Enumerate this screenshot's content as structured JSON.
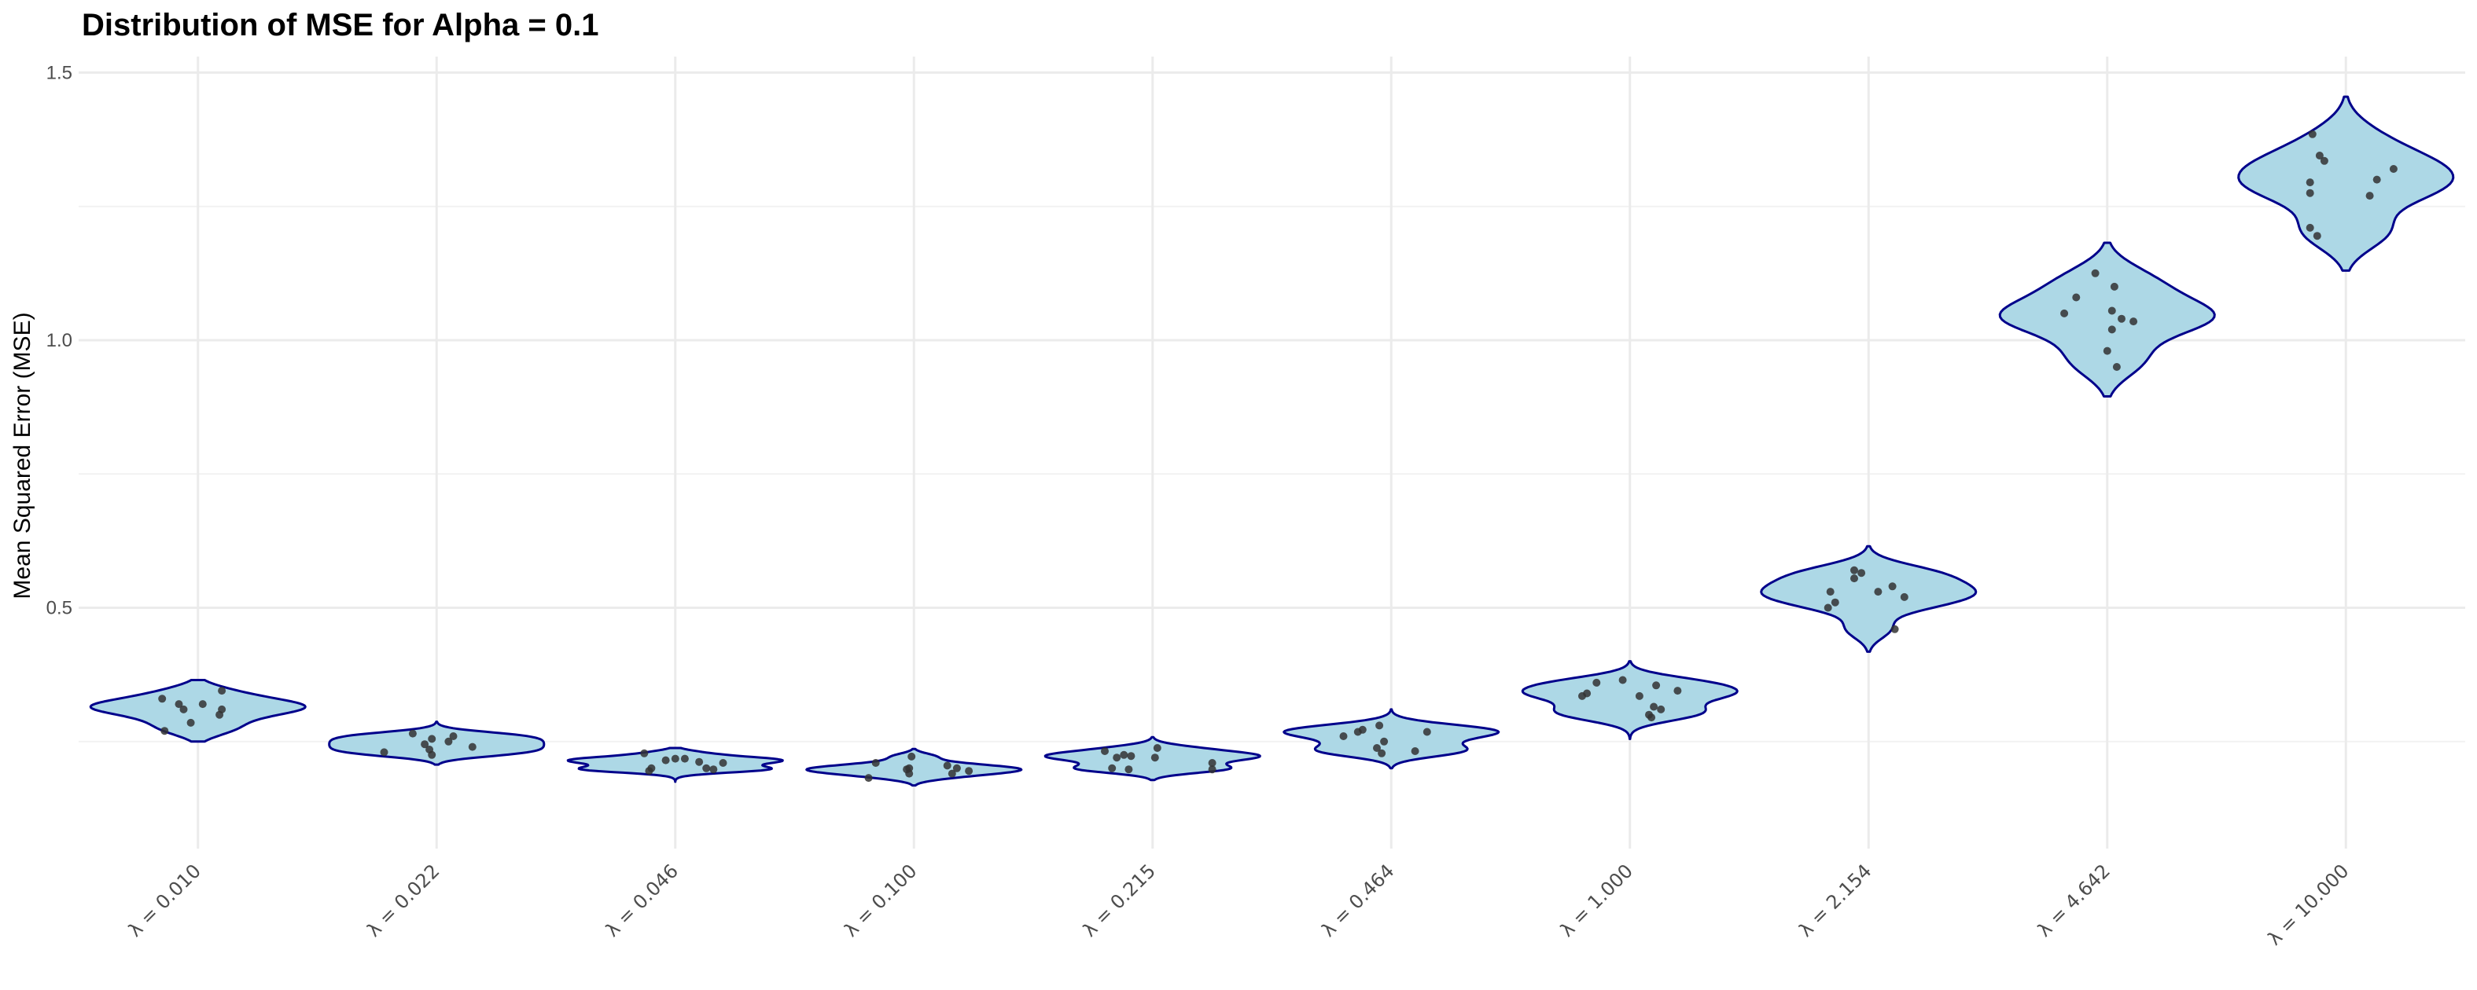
{
  "chart_data": {
    "type": "violin",
    "title": "Distribution of MSE for Alpha = 0.1",
    "xlabel": "",
    "ylabel": "Mean Squared Error (MSE)",
    "ylim": [
      0.05,
      1.53
    ],
    "yticks": [
      0.5,
      1.0,
      1.5
    ],
    "ytick_labels": [
      "0.5",
      "1.0",
      "1.5"
    ],
    "yminor": [
      0.25,
      0.75,
      1.25
    ],
    "grid": true,
    "categories": [
      "λ = 0.010",
      "λ = 0.022",
      "λ = 0.046",
      "λ = 0.100",
      "λ = 0.215",
      "λ = 0.464",
      "λ = 1.000",
      "λ = 2.154",
      "λ = 4.642",
      "λ = 10.000"
    ],
    "violin_fill": "#ADD8E6",
    "violin_outline": "#00008B",
    "point_color": "#333333",
    "series": [
      {
        "ymin": 0.25,
        "ymax": 0.365,
        "points": [
          [
            -0.15,
            0.33
          ],
          [
            -0.08,
            0.32
          ],
          [
            -0.06,
            0.31
          ],
          [
            0.02,
            0.32
          ],
          [
            0.09,
            0.3
          ],
          [
            0.1,
            0.31
          ],
          [
            0.1,
            0.345
          ],
          [
            -0.03,
            0.285
          ],
          [
            -0.14,
            0.27
          ]
        ]
      },
      {
        "ymin": 0.207,
        "ymax": 0.287,
        "points": [
          [
            -0.1,
            0.265
          ],
          [
            0.07,
            0.26
          ],
          [
            -0.02,
            0.255
          ],
          [
            0.05,
            0.25
          ],
          [
            -0.05,
            0.245
          ],
          [
            0.15,
            0.24
          ],
          [
            -0.03,
            0.235
          ],
          [
            -0.22,
            0.23
          ],
          [
            -0.02,
            0.225
          ]
        ]
      },
      {
        "ymin": 0.175,
        "ymax": 0.238,
        "points": [
          [
            -0.13,
            0.228
          ],
          [
            0.0,
            0.218
          ],
          [
            0.04,
            0.218
          ],
          [
            -0.04,
            0.215
          ],
          [
            0.1,
            0.212
          ],
          [
            0.2,
            0.21
          ],
          [
            0.13,
            0.2
          ],
          [
            0.16,
            0.198
          ],
          [
            -0.1,
            0.2
          ],
          [
            -0.11,
            0.195
          ]
        ]
      },
      {
        "ymin": 0.168,
        "ymax": 0.236,
        "points": [
          [
            -0.01,
            0.222
          ],
          [
            -0.16,
            0.21
          ],
          [
            0.14,
            0.205
          ],
          [
            0.18,
            0.2
          ],
          [
            -0.02,
            0.2
          ],
          [
            -0.03,
            0.198
          ],
          [
            0.23,
            0.195
          ],
          [
            0.16,
            0.19
          ],
          [
            -0.02,
            0.19
          ],
          [
            -0.19,
            0.182
          ]
        ]
      },
      {
        "ymin": 0.178,
        "ymax": 0.258,
        "points": [
          [
            0.02,
            0.238
          ],
          [
            -0.2,
            0.232
          ],
          [
            -0.12,
            0.225
          ],
          [
            -0.09,
            0.223
          ],
          [
            -0.15,
            0.22
          ],
          [
            0.01,
            0.22
          ],
          [
            0.25,
            0.21
          ],
          [
            -0.17,
            0.2
          ],
          [
            -0.1,
            0.198
          ],
          [
            0.25,
            0.198
          ]
        ]
      },
      {
        "ymin": 0.2,
        "ymax": 0.31,
        "points": [
          [
            -0.05,
            0.28
          ],
          [
            -0.12,
            0.272
          ],
          [
            -0.14,
            0.268
          ],
          [
            0.15,
            0.268
          ],
          [
            -0.2,
            0.26
          ],
          [
            -0.03,
            0.25
          ],
          [
            -0.06,
            0.238
          ],
          [
            0.1,
            0.232
          ],
          [
            -0.04,
            0.228
          ]
        ]
      },
      {
        "ymin": 0.255,
        "ymax": 0.4,
        "points": [
          [
            -0.14,
            0.36
          ],
          [
            -0.03,
            0.365
          ],
          [
            0.11,
            0.355
          ],
          [
            0.2,
            0.345
          ],
          [
            -0.18,
            0.34
          ],
          [
            -0.2,
            0.335
          ],
          [
            0.04,
            0.335
          ],
          [
            0.1,
            0.315
          ],
          [
            0.13,
            0.31
          ],
          [
            0.08,
            0.3
          ],
          [
            0.09,
            0.295
          ]
        ]
      },
      {
        "ymin": 0.418,
        "ymax": 0.615,
        "points": [
          [
            -0.06,
            0.57
          ],
          [
            -0.03,
            0.565
          ],
          [
            -0.06,
            0.555
          ],
          [
            0.1,
            0.54
          ],
          [
            -0.16,
            0.53
          ],
          [
            0.04,
            0.53
          ],
          [
            0.15,
            0.52
          ],
          [
            -0.14,
            0.51
          ],
          [
            -0.17,
            0.5
          ],
          [
            0.11,
            0.46
          ]
        ]
      },
      {
        "ymin": 0.895,
        "ymax": 1.182,
        "points": [
          [
            -0.05,
            1.125
          ],
          [
            0.03,
            1.1
          ],
          [
            -0.13,
            1.08
          ],
          [
            0.02,
            1.055
          ],
          [
            0.06,
            1.04
          ],
          [
            -0.18,
            1.05
          ],
          [
            0.11,
            1.035
          ],
          [
            0.02,
            1.02
          ],
          [
            0.0,
            0.98
          ],
          [
            0.04,
            0.95
          ]
        ]
      },
      {
        "ymin": 1.13,
        "ymax": 1.455,
        "points": [
          [
            -0.14,
            1.385
          ],
          [
            -0.11,
            1.345
          ],
          [
            -0.09,
            1.335
          ],
          [
            0.2,
            1.32
          ],
          [
            0.13,
            1.3
          ],
          [
            -0.15,
            1.295
          ],
          [
            -0.15,
            1.275
          ],
          [
            0.1,
            1.27
          ],
          [
            -0.15,
            1.21
          ],
          [
            -0.12,
            1.195
          ]
        ]
      }
    ]
  }
}
